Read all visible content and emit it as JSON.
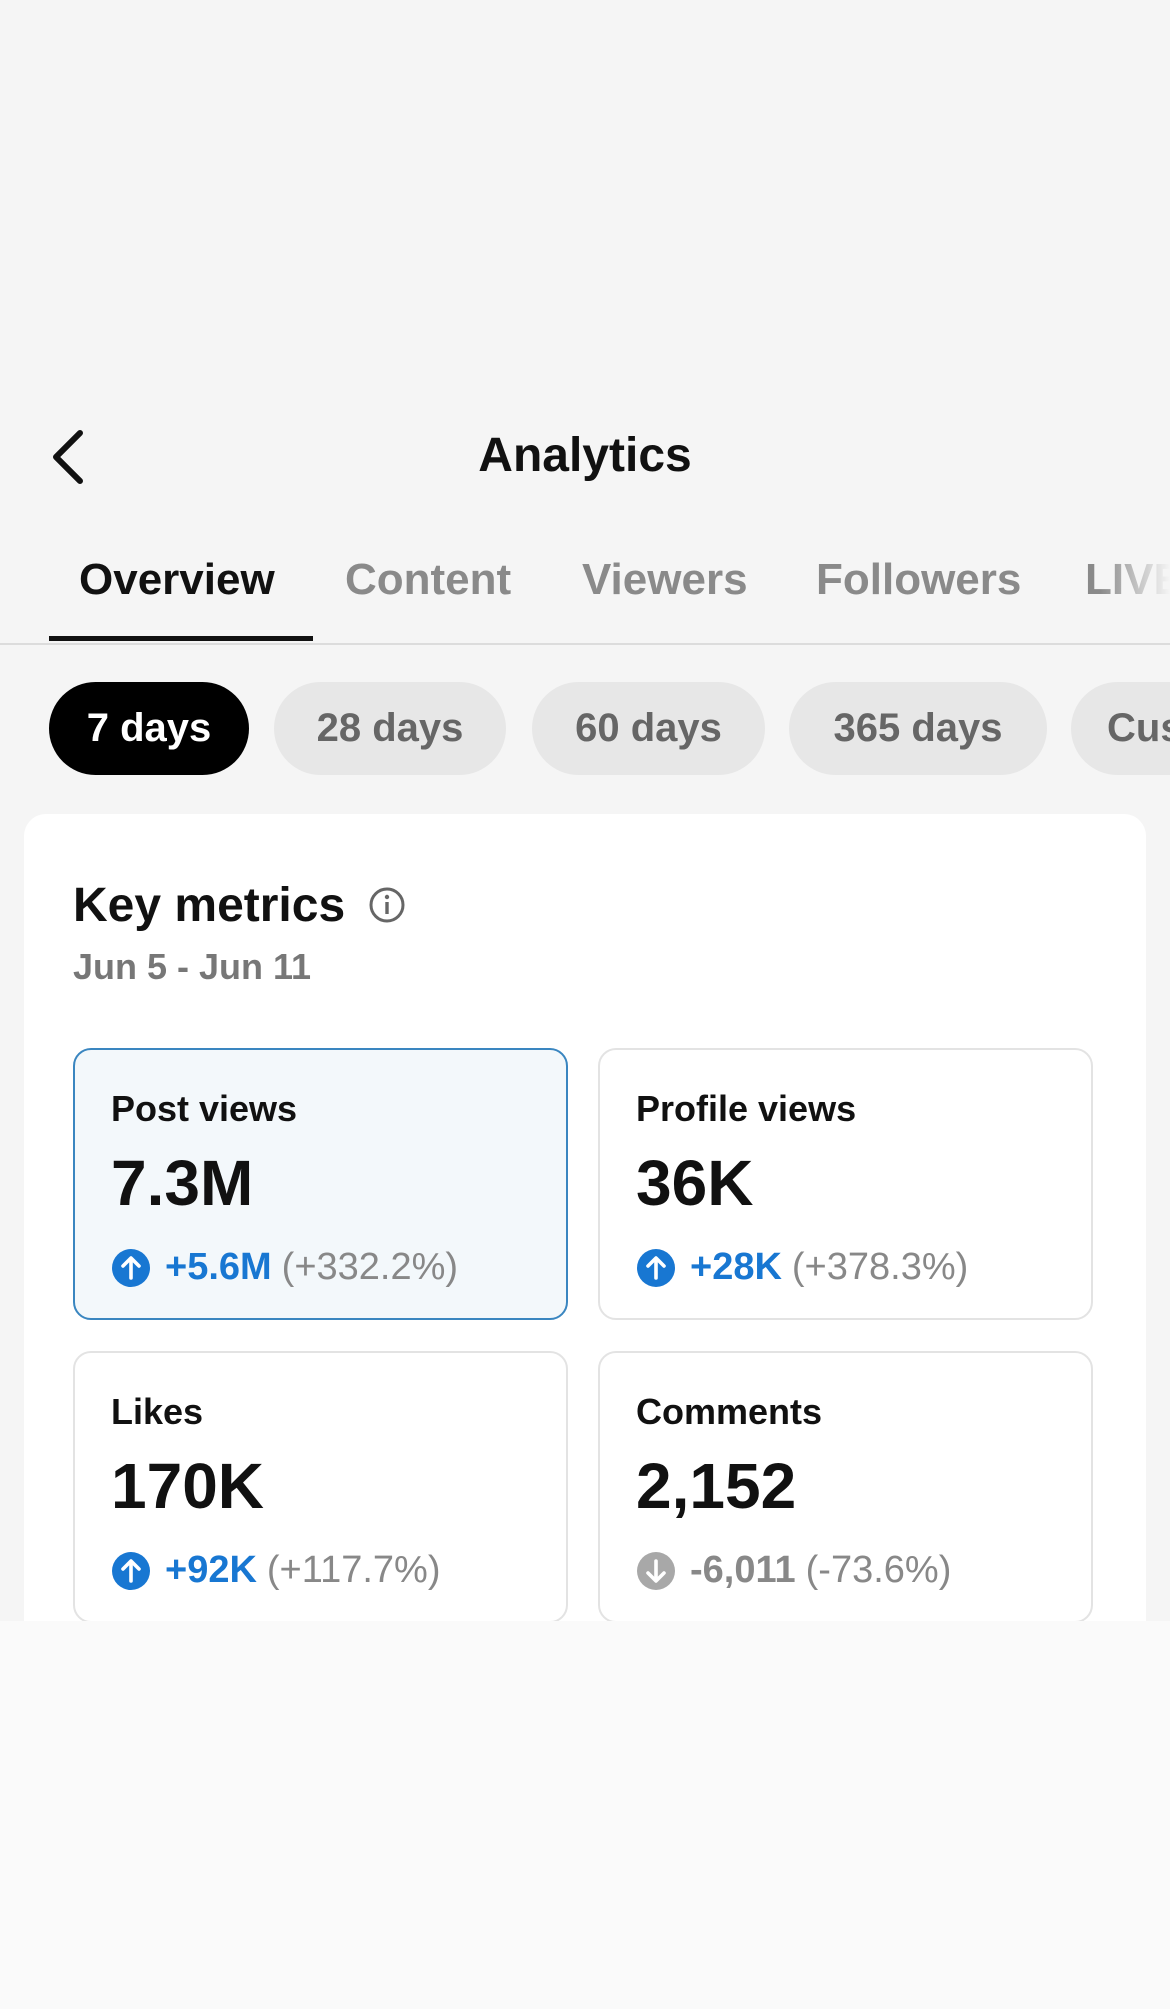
{
  "header": {
    "title": "Analytics"
  },
  "tabs": {
    "items": [
      "Overview",
      "Content",
      "Viewers",
      "Followers",
      "LIVE"
    ],
    "active": 0
  },
  "periods": {
    "items": [
      "7 days",
      "28 days",
      "60 days",
      "365 days",
      "Custom"
    ],
    "active": 0
  },
  "key_metrics": {
    "title": "Key metrics",
    "date_range": "Jun 5 - Jun 11",
    "metrics": [
      {
        "label": "Post views",
        "value": "7.3M",
        "change": "+5.6M",
        "change_pct": "(+332.2%)",
        "trend": "up",
        "selected": true
      },
      {
        "label": "Profile views",
        "value": "36K",
        "change": "+28K",
        "change_pct": "(+378.3%)",
        "trend": "up",
        "selected": false
      },
      {
        "label": "Likes",
        "value": "170K",
        "change": "+92K",
        "change_pct": "(+117.7%)",
        "trend": "up",
        "selected": false
      },
      {
        "label": "Comments",
        "value": "2,152",
        "change": "-6,011",
        "change_pct": "(-73.6%)",
        "trend": "down",
        "selected": false
      }
    ]
  }
}
